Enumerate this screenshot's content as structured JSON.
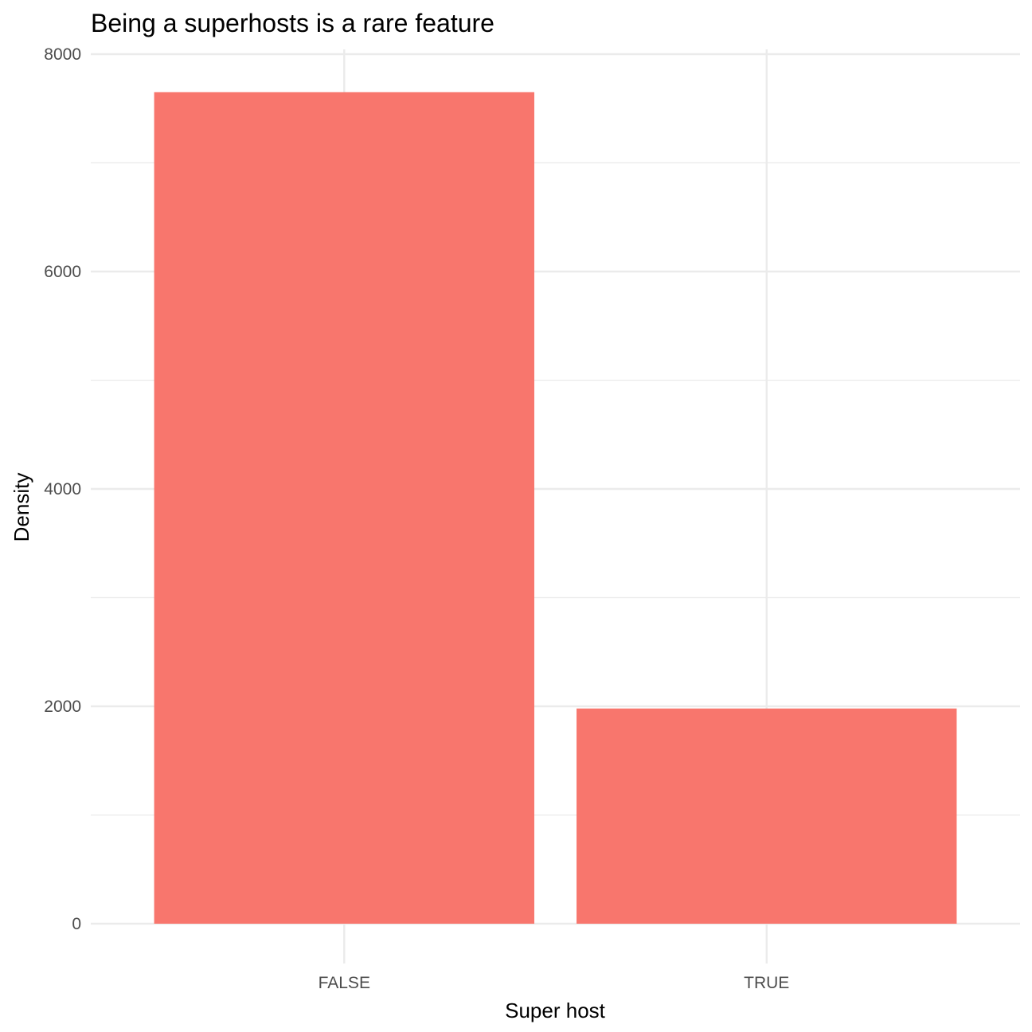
{
  "chart_data": {
    "type": "bar",
    "title": "Being a superhosts is a rare feature",
    "xlabel": "Super host",
    "ylabel": "Density",
    "categories": [
      "FALSE",
      "TRUE"
    ],
    "values": [
      7650,
      1980
    ],
    "ylim": [
      0,
      8000
    ],
    "yticks": [
      "0",
      "2000",
      "4000",
      "6000",
      "8000"
    ],
    "yminor": [
      1000,
      3000,
      5000,
      7000
    ],
    "bar_color": "#F8766D",
    "grid": true,
    "legend": "none"
  }
}
